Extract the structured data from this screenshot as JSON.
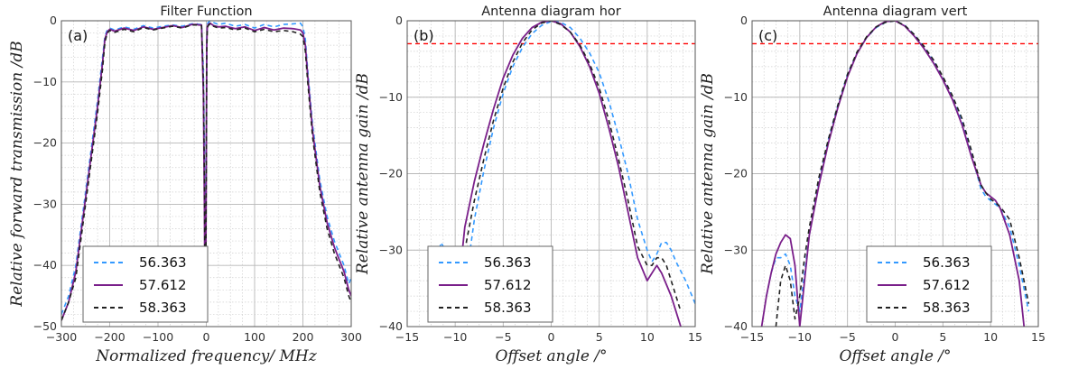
{
  "chart_data": [
    {
      "type": "line",
      "panel_label": "(a)",
      "title": "Filter Function",
      "xlabel": "Normalized frequency/ MHz",
      "ylabel": "Relative forward transmission /dB",
      "xlim": [
        -300,
        300
      ],
      "ylim": [
        -50,
        0
      ],
      "xticks": [
        -300,
        -200,
        -100,
        0,
        100,
        200,
        300
      ],
      "yticks": [
        -50,
        -40,
        -30,
        -20,
        -10,
        0
      ],
      "grid": true,
      "legend_position": "lower-left",
      "series": [
        {
          "name": "56.363",
          "color": "#3399ff",
          "style": "dashed",
          "x": [
            -300,
            -285,
            -270,
            -255,
            -240,
            -225,
            -215,
            -210,
            -205,
            -200,
            -190,
            -170,
            -150,
            -130,
            -110,
            -90,
            -70,
            -50,
            -30,
            -20,
            -15,
            -10,
            -6,
            -4,
            -3,
            -2,
            -1,
            0,
            1,
            2,
            4,
            8,
            15,
            25,
            40,
            60,
            80,
            100,
            120,
            140,
            160,
            180,
            195,
            200,
            205,
            210,
            220,
            235,
            250,
            265,
            275,
            285,
            295,
            300
          ],
          "y": [
            -48,
            -45,
            -40,
            -31,
            -22,
            -13,
            -6,
            -2.5,
            -1.5,
            -1.2,
            -1.5,
            -1.0,
            -1.4,
            -0.8,
            -1.2,
            -0.9,
            -0.7,
            -0.9,
            -0.5,
            -0.5,
            -0.6,
            -0.6,
            -8,
            -20,
            -33,
            -40,
            -38,
            -20,
            -3,
            -0.6,
            -0.3,
            0,
            -0.3,
            -0.6,
            -0.4,
            -0.9,
            -0.6,
            -1.2,
            -0.6,
            -1.0,
            -0.6,
            -0.5,
            -0.4,
            -1.0,
            -3,
            -8,
            -17,
            -26,
            -32,
            -36,
            -38,
            -40,
            -43,
            -42
          ]
        },
        {
          "name": "57.612",
          "color": "#7a1f8a",
          "style": "solid",
          "x": [
            -300,
            -285,
            -270,
            -255,
            -240,
            -225,
            -215,
            -210,
            -205,
            -200,
            -190,
            -170,
            -150,
            -130,
            -110,
            -90,
            -70,
            -50,
            -30,
            -20,
            -15,
            -10,
            -6,
            -4,
            -3,
            -2,
            -1,
            0,
            1,
            2,
            4,
            8,
            15,
            25,
            40,
            60,
            80,
            100,
            120,
            140,
            160,
            180,
            195,
            200,
            205,
            210,
            220,
            235,
            250,
            265,
            275,
            285,
            295,
            300
          ],
          "y": [
            -49,
            -46,
            -41,
            -32,
            -23,
            -14,
            -7,
            -3,
            -1.8,
            -1.4,
            -1.7,
            -1.2,
            -1.6,
            -1.0,
            -1.4,
            -1.1,
            -0.8,
            -1.1,
            -0.6,
            -0.6,
            -0.7,
            -0.7,
            -12,
            -30,
            -44,
            -46,
            -40,
            -22,
            -4,
            -1.0,
            -0.6,
            -0.4,
            -0.8,
            -1.0,
            -0.9,
            -1.3,
            -1.0,
            -1.6,
            -1.1,
            -1.5,
            -1.2,
            -1.3,
            -1.5,
            -2.0,
            -4,
            -9,
            -18,
            -27,
            -33,
            -37,
            -39,
            -41,
            -44,
            -45
          ]
        },
        {
          "name": "58.363",
          "color": "#222222",
          "style": "dashed",
          "x": [
            -300,
            -285,
            -270,
            -255,
            -240,
            -225,
            -215,
            -210,
            -205,
            -200,
            -190,
            -170,
            -150,
            -130,
            -110,
            -90,
            -70,
            -50,
            -30,
            -20,
            -15,
            -10,
            -6,
            -4,
            -3,
            -2,
            -1,
            0,
            1,
            2,
            4,
            8,
            15,
            25,
            40,
            60,
            80,
            100,
            120,
            140,
            160,
            180,
            195,
            200,
            205,
            210,
            220,
            235,
            250,
            265,
            275,
            285,
            295,
            300
          ],
          "y": [
            -49,
            -46,
            -42,
            -33,
            -24,
            -15,
            -8,
            -3.5,
            -2.0,
            -1.6,
            -1.9,
            -1.4,
            -1.8,
            -1.1,
            -1.5,
            -1.2,
            -0.9,
            -1.2,
            -0.7,
            -0.7,
            -0.8,
            -0.8,
            -10,
            -26,
            -40,
            -44,
            -41,
            -23,
            -5,
            -1.2,
            -0.8,
            -0.5,
            -0.9,
            -1.2,
            -1.1,
            -1.5,
            -1.2,
            -1.8,
            -1.4,
            -1.8,
            -1.6,
            -1.8,
            -2.2,
            -2.6,
            -5,
            -10,
            -19,
            -28,
            -34,
            -38,
            -40,
            -42,
            -45,
            -46
          ]
        }
      ]
    },
    {
      "type": "line",
      "panel_label": "(b)",
      "title": "Antenna diagram hor",
      "xlabel": "Offset angle /°",
      "ylabel": "Relative antenna gain /dB",
      "xlim": [
        -15,
        15
      ],
      "ylim": [
        -40,
        0
      ],
      "xticks": [
        -15,
        -10,
        -5,
        0,
        5,
        10,
        15
      ],
      "yticks": [
        -40,
        -30,
        -20,
        -10,
        0
      ],
      "grid": true,
      "reference_line": {
        "y": -3,
        "color": "#ff0000",
        "style": "dashed"
      },
      "legend_position": "lower-right",
      "series": [
        {
          "name": "56.363",
          "color": "#3399ff",
          "style": "dashed",
          "x": [
            -12,
            -11.5,
            -11,
            -10.5,
            -10,
            -9.5,
            -9,
            -8,
            -7,
            -6,
            -5,
            -4,
            -3,
            -2,
            -1,
            0,
            1,
            2,
            3,
            4,
            5,
            6,
            7,
            8,
            9,
            10,
            10.5,
            11,
            11.5,
            12,
            12.5,
            13,
            14,
            15
          ],
          "y": [
            -33,
            -29,
            -30,
            -29.5,
            -31,
            -36,
            -35,
            -26,
            -19.5,
            -14,
            -9.5,
            -6,
            -3.5,
            -1.7,
            -0.6,
            -0.1,
            -0.2,
            -0.9,
            -2.3,
            -4.2,
            -6.8,
            -10.5,
            -15,
            -20,
            -26,
            -30,
            -31.5,
            -30.5,
            -29,
            -29,
            -30,
            -31.5,
            -34,
            -37
          ]
        },
        {
          "name": "57.612",
          "color": "#7a1f8a",
          "style": "solid",
          "x": [
            -12,
            -11.5,
            -11,
            -10.5,
            -10,
            -9.5,
            -9,
            -8,
            -7,
            -6,
            -5,
            -4,
            -3,
            -2,
            -1,
            0,
            1,
            2,
            3,
            4,
            5,
            6,
            7,
            8,
            9,
            10,
            10.5,
            11,
            11.5,
            12,
            12.5,
            13,
            13.5
          ],
          "y": [
            -35,
            -32,
            -31,
            -34,
            -38,
            -33,
            -27,
            -21,
            -16,
            -11.5,
            -7.5,
            -4.5,
            -2.3,
            -0.9,
            -0.2,
            0,
            -0.4,
            -1.5,
            -3.4,
            -6,
            -9.5,
            -14,
            -19,
            -25,
            -31,
            -34,
            -33,
            -32,
            -33,
            -34.5,
            -36,
            -38,
            -40
          ]
        },
        {
          "name": "58.363",
          "color": "#222222",
          "style": "dashed",
          "x": [
            -12,
            -11.5,
            -11,
            -10.5,
            -10,
            -9.5,
            -9,
            -8,
            -7,
            -6,
            -5,
            -4,
            -3,
            -2,
            -1,
            0,
            1,
            2,
            3,
            4,
            5,
            6,
            7,
            8,
            9,
            10,
            10.5,
            11,
            11.5,
            12,
            12.5,
            13,
            13.5
          ],
          "y": [
            -37,
            -32,
            -30.5,
            -33,
            -38,
            -35,
            -30,
            -23.5,
            -18,
            -13,
            -8.8,
            -5.4,
            -2.9,
            -1.2,
            -0.3,
            0,
            -0.5,
            -1.5,
            -3.2,
            -5.6,
            -8.8,
            -13,
            -18,
            -23.5,
            -29.5,
            -32,
            -32,
            -31,
            -31,
            -32,
            -34,
            -36,
            -38
          ]
        }
      ]
    },
    {
      "type": "line",
      "panel_label": "(c)",
      "title": "Antenna diagram vert",
      "xlabel": "Offset angle /°",
      "ylabel": "Relative antenna gain /dB",
      "xlim": [
        -15,
        15
      ],
      "ylim": [
        -40,
        0
      ],
      "xticks": [
        -15,
        -10,
        -5,
        0,
        5,
        10,
        15
      ],
      "yticks": [
        -40,
        -30,
        -20,
        -10,
        0
      ],
      "grid": true,
      "reference_line": {
        "y": -3,
        "color": "#ff0000",
        "style": "dashed"
      },
      "legend_position": "lower-right",
      "series": [
        {
          "name": "56.363",
          "color": "#3399ff",
          "style": "dashed",
          "x": [
            -13.5,
            -13,
            -12.5,
            -12,
            -11.5,
            -11,
            -10.5,
            -10,
            -9.5,
            -9,
            -8,
            -7,
            -6,
            -5,
            -4,
            -3,
            -2,
            -1,
            0,
            1,
            2,
            3,
            4,
            5,
            6,
            7,
            8,
            9,
            9.5,
            10,
            10.5,
            11,
            12,
            13,
            14
          ],
          "y": [
            -36,
            -33,
            -31,
            -31,
            -30.5,
            -32,
            -36,
            -38,
            -33,
            -28,
            -21,
            -15.5,
            -11,
            -7,
            -4.2,
            -2.2,
            -0.9,
            -0.2,
            0,
            -0.6,
            -1.8,
            -3.4,
            -5.2,
            -7.5,
            -10,
            -13,
            -17.5,
            -22,
            -23,
            -23.5,
            -24,
            -24.5,
            -27,
            -32,
            -38
          ]
        },
        {
          "name": "57.612",
          "color": "#7a1f8a",
          "style": "solid",
          "x": [
            -14,
            -13.5,
            -13,
            -12.5,
            -12,
            -11.5,
            -11,
            -10.5,
            -10,
            -9.5,
            -9,
            -8,
            -7,
            -6,
            -5,
            -4,
            -3,
            -2,
            -1,
            0,
            1,
            2,
            3,
            4,
            5,
            6,
            7,
            8,
            9,
            9.5,
            10,
            10.5,
            11,
            12,
            13,
            13.5
          ],
          "y": [
            -40,
            -36,
            -33,
            -30.5,
            -29,
            -28,
            -28.5,
            -32,
            -40,
            -34,
            -28,
            -21.5,
            -16,
            -11.3,
            -7.3,
            -4.3,
            -2.2,
            -0.8,
            -0.1,
            0,
            -0.7,
            -2.0,
            -3.6,
            -5.5,
            -7.7,
            -10.3,
            -13.6,
            -17.8,
            -21.5,
            -22.5,
            -23,
            -23.5,
            -24.5,
            -28,
            -34,
            -40
          ]
        },
        {
          "name": "58.363",
          "color": "#222222",
          "style": "dashed",
          "x": [
            -12.5,
            -12,
            -11.5,
            -11,
            -10.5,
            -10,
            -9.5,
            -9,
            -8,
            -7,
            -6,
            -5,
            -4,
            -3,
            -2,
            -1,
            0,
            1,
            2,
            3,
            4,
            5,
            6,
            7,
            8,
            9,
            9.5,
            10,
            10.5,
            11,
            12,
            13,
            14
          ],
          "y": [
            -40,
            -34,
            -32,
            -34,
            -39,
            -36,
            -31,
            -27,
            -20.5,
            -15.5,
            -11,
            -7,
            -4.1,
            -2.1,
            -0.8,
            -0.2,
            0,
            -0.6,
            -1.8,
            -3.3,
            -5.1,
            -7.3,
            -9.8,
            -12.8,
            -17,
            -21.5,
            -22.5,
            -23.3,
            -23.8,
            -24.3,
            -26,
            -31,
            -37
          ]
        }
      ]
    }
  ]
}
